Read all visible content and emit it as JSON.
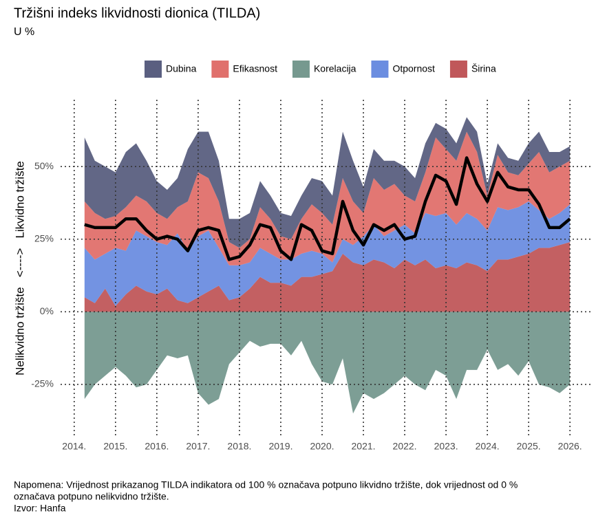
{
  "chart_data": {
    "type": "stacked_area",
    "title": "Tržišni indeks likvidnosti dionica (TILDA)",
    "subtitle": "U %",
    "y_label": "Nelikvidno tržište   <---->   Likvidno tržište",
    "notes": [
      "Napomena: Vrijednost prikazanog TILDA indikatora od 100 % označava potpuno likvidno tržište, dok vrijednost od 0 %",
      "označava potpuno nelikvidno tržište.",
      "Izvor: Hanfa"
    ],
    "x": [
      2014.25,
      2014.5,
      2014.75,
      2015.0,
      2015.25,
      2015.5,
      2015.75,
      2016.0,
      2016.25,
      2016.5,
      2016.75,
      2017.0,
      2017.25,
      2017.5,
      2017.75,
      2018.0,
      2018.25,
      2018.5,
      2018.75,
      2019.0,
      2019.25,
      2019.5,
      2019.75,
      2020.0,
      2020.25,
      2020.5,
      2020.75,
      2021.0,
      2021.25,
      2021.5,
      2021.75,
      2022.0,
      2022.25,
      2022.5,
      2022.75,
      2023.0,
      2023.25,
      2023.5,
      2023.75,
      2024.0,
      2024.25,
      2024.5,
      2024.75,
      2025.0,
      2025.25,
      2025.5,
      2025.75,
      2026.0
    ],
    "series": [
      {
        "name": "Dubina",
        "color": "#5a5f80",
        "values": [
          22,
          18,
          18,
          15,
          19,
          18,
          14,
          11,
          10,
          10,
          18,
          14,
          16,
          14,
          8,
          10,
          9,
          9,
          8,
          8,
          8,
          8,
          9,
          11,
          10,
          16,
          14,
          9,
          10,
          10,
          8,
          10,
          8,
          10,
          5,
          7,
          6,
          5,
          7,
          4,
          4,
          5,
          5,
          7,
          7,
          7,
          5,
          5
        ]
      },
      {
        "name": "Efikasnost",
        "color": "#e0706c",
        "values": [
          16,
          16,
          12,
          11,
          15,
          12,
          12,
          10,
          9,
          9,
          17,
          22,
          18,
          16,
          8,
          6,
          8,
          14,
          12,
          8,
          7,
          12,
          16,
          14,
          13,
          21,
          15,
          8,
          16,
          16,
          16,
          10,
          11,
          14,
          27,
          22,
          22,
          28,
          23,
          12,
          18,
          13,
          11,
          13,
          20,
          16,
          16,
          15
        ]
      },
      {
        "name": "Korelacija",
        "color": "#76998f",
        "values": [
          -30,
          -25,
          -22,
          -19,
          -22,
          -26,
          -25,
          -20,
          -15,
          -16,
          -15,
          -28,
          -32,
          -30,
          -18,
          -14,
          -10,
          -12,
          -11,
          -11,
          -15,
          -10,
          -18,
          -24,
          -25,
          -16,
          -35,
          -28,
          -30,
          -28,
          -25,
          -22,
          -25,
          -27,
          -20,
          -22,
          -30,
          -20,
          -20,
          -13,
          -20,
          -18,
          -22,
          -17,
          -25,
          -26,
          -28,
          -25
        ]
      },
      {
        "name": "Otpornost",
        "color": "#6b8de0",
        "values": [
          17,
          15,
          12,
          20,
          15,
          19,
          19,
          18,
          15,
          23,
          18,
          21,
          21,
          13,
          12,
          11,
          9,
          10,
          10,
          8,
          9,
          8,
          9,
          7,
          3,
          5,
          6,
          10,
          12,
          9,
          13,
          12,
          11,
          16,
          18,
          18,
          15,
          17,
          16,
          14,
          18,
          17,
          17,
          18,
          13,
          10,
          11,
          13
        ]
      },
      {
        "name": "Širina",
        "color": "#c0575a",
        "values": [
          5,
          3,
          8,
          2,
          6,
          9,
          7,
          6,
          8,
          4,
          3,
          5,
          7,
          9,
          4,
          5,
          8,
          12,
          10,
          10,
          9,
          12,
          12,
          13,
          14,
          20,
          17,
          16,
          18,
          17,
          15,
          18,
          16,
          18,
          15,
          16,
          15,
          17,
          16,
          14,
          18,
          18,
          19,
          20,
          22,
          22,
          23,
          24
        ]
      }
    ],
    "line": {
      "color": "#000000",
      "values": [
        30,
        29,
        29,
        29,
        32,
        32,
        28,
        25,
        26,
        25,
        21,
        28,
        29,
        28,
        18,
        19,
        23,
        30,
        29,
        21,
        18,
        30,
        28,
        21,
        20,
        38,
        28,
        23,
        30,
        28,
        30,
        25,
        26,
        38,
        47,
        45,
        37,
        53,
        44,
        38,
        48,
        43,
        42,
        42,
        37,
        29,
        29,
        32
      ]
    },
    "xlim": [
      2013.67,
      2026.53
    ],
    "ylim": [
      -43,
      73
    ],
    "xticks": [
      {
        "value": 2014,
        "label": "2014."
      },
      {
        "value": 2015,
        "label": "2015."
      },
      {
        "value": 2016,
        "label": "2016."
      },
      {
        "value": 2017,
        "label": "2017."
      },
      {
        "value": 2018,
        "label": "2018."
      },
      {
        "value": 2019,
        "label": "2019."
      },
      {
        "value": 2020,
        "label": "2020."
      },
      {
        "value": 2021,
        "label": "2021."
      },
      {
        "value": 2022,
        "label": "2022."
      },
      {
        "value": 2023,
        "label": "2023."
      },
      {
        "value": 2024,
        "label": "2024."
      },
      {
        "value": 2025,
        "label": "2025."
      },
      {
        "value": 2026,
        "label": "2026."
      }
    ],
    "yticks": [
      {
        "value": -25,
        "label": "-25%"
      },
      {
        "value": 0,
        "label": "0%"
      },
      {
        "value": 25,
        "label": "25%"
      },
      {
        "value": 50,
        "label": "50%"
      }
    ],
    "grid": true,
    "legend": "top"
  }
}
